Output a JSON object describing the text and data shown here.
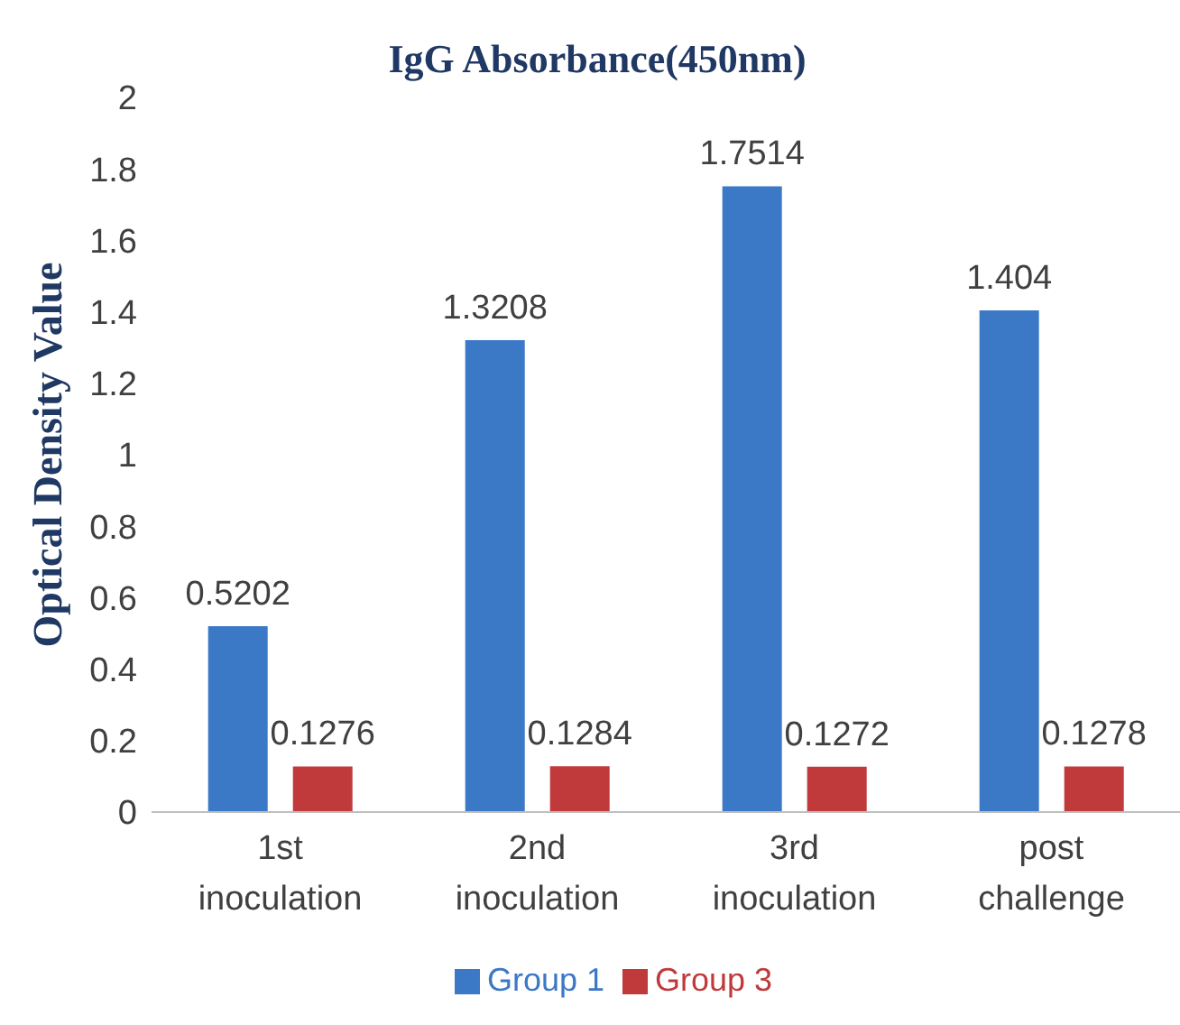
{
  "chart_data": {
    "type": "bar",
    "title": "IgG Absorbance(450nm)",
    "ylabel": "Optical Density Value",
    "categories": [
      "1st inoculation",
      "2nd inoculation",
      "3rd inoculation",
      "post challenge"
    ],
    "series": [
      {
        "name": "Group 1",
        "color": "#3b78c6",
        "values": [
          0.5202,
          1.3208,
          1.7514,
          1.404
        ]
      },
      {
        "name": "Group 3",
        "color": "#c0393b",
        "values": [
          0.1276,
          0.1284,
          0.1272,
          0.1278
        ]
      }
    ],
    "ylim": [
      0,
      2
    ],
    "yticks": [
      0,
      0.2,
      0.4,
      0.6,
      0.8,
      1,
      1.2,
      1.4,
      1.6,
      1.8,
      2
    ],
    "grid": false,
    "legend": "bottom",
    "data_labels": true
  }
}
